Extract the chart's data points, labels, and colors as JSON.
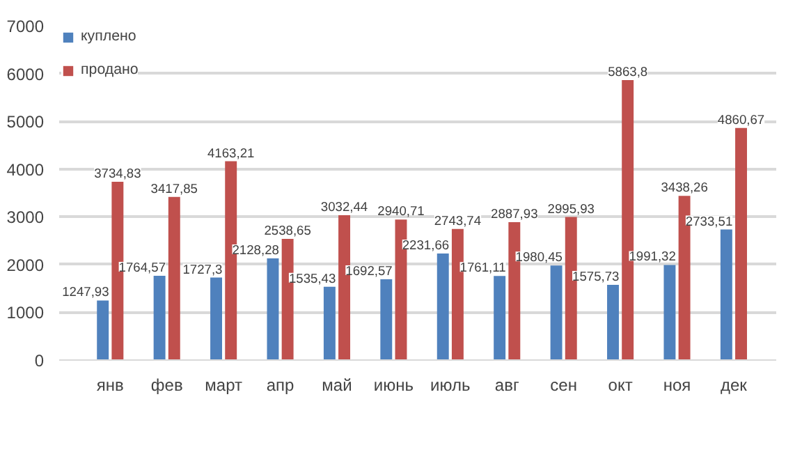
{
  "chart_data": {
    "type": "bar",
    "categories": [
      "янв",
      "фев",
      "март",
      "апр",
      "май",
      "июнь",
      "июль",
      "авг",
      "сен",
      "окт",
      "ноя",
      "дек"
    ],
    "series": [
      {
        "name": "куплено",
        "color": "#4f81bd",
        "values": [
          1247.93,
          1764.57,
          1727.3,
          2128.28,
          1535.43,
          1692.57,
          2231.66,
          1761.11,
          1980.45,
          1575.73,
          1991.32,
          2733.51
        ],
        "value_labels": [
          "1247,93",
          "1764,57",
          "1727,3",
          "2128,28",
          "1535,43",
          "1692,57",
          "2231,66",
          "1761,11",
          "1980,45",
          "1575,73",
          "1991,32",
          "2733,51"
        ]
      },
      {
        "name": "продано",
        "color": "#c0504d",
        "values": [
          3734.83,
          3417.85,
          4163.21,
          2538.65,
          3032.44,
          2940.71,
          2743.74,
          2887.93,
          2995.93,
          5863.8,
          3438.26,
          4860.67
        ],
        "value_labels": [
          "3734,83",
          "3417,85",
          "4163,21",
          "2538,65",
          "3032,44",
          "2940,71",
          "2743,74",
          "2887,93",
          "2995,93",
          "5863,8",
          "3438,26",
          "4860,67"
        ]
      }
    ],
    "ylim": [
      0,
      7000
    ],
    "yticks": [
      0,
      1000,
      2000,
      3000,
      4000,
      5000,
      6000,
      7000
    ],
    "grid": "y",
    "legend": "top left"
  }
}
